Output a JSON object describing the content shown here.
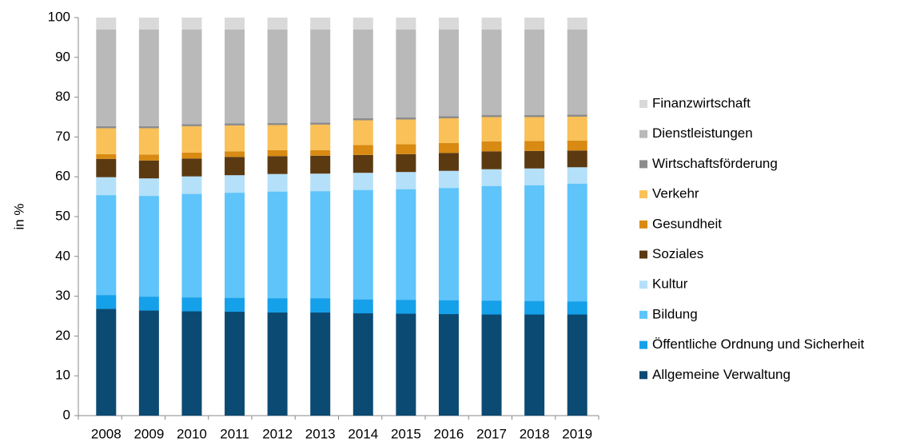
{
  "chart_data": {
    "type": "stacked_bar",
    "y_label": "in %",
    "categories": [
      "2008",
      "2009",
      "2010",
      "2011",
      "2012",
      "2013",
      "2014",
      "2015",
      "2016",
      "2017",
      "2018",
      "2019"
    ],
    "ylim": [
      0,
      100
    ],
    "yticks": [
      0,
      10,
      20,
      30,
      40,
      50,
      60,
      70,
      80,
      90,
      100
    ],
    "grid": false,
    "series": [
      {
        "name": "Allgemeine Verwaltung",
        "color": "#0b4a72",
        "values": [
          26.8,
          26.4,
          26.2,
          26.1,
          25.9,
          25.9,
          25.7,
          25.6,
          25.5,
          25.4,
          25.4,
          25.4
        ]
      },
      {
        "name": "Öffentliche Ordnung und Sicherheit",
        "color": "#15a0ea",
        "values": [
          3.5,
          3.5,
          3.5,
          3.5,
          3.6,
          3.6,
          3.5,
          3.5,
          3.5,
          3.5,
          3.4,
          3.3
        ]
      },
      {
        "name": "Bildung",
        "color": "#5ec4fa",
        "values": [
          25.1,
          25.3,
          26.0,
          26.4,
          26.8,
          26.9,
          27.5,
          27.8,
          28.2,
          28.8,
          29.1,
          29.6
        ]
      },
      {
        "name": "Kultur",
        "color": "#b4e0fa",
        "values": [
          4.5,
          4.4,
          4.4,
          4.4,
          4.4,
          4.4,
          4.3,
          4.3,
          4.3,
          4.2,
          4.2,
          4.1
        ]
      },
      {
        "name": "Soziales",
        "color": "#5b3a12",
        "values": [
          4.6,
          4.5,
          4.5,
          4.6,
          4.5,
          4.5,
          4.5,
          4.5,
          4.5,
          4.5,
          4.4,
          4.2
        ]
      },
      {
        "name": "Gesundheit",
        "color": "#d88a12",
        "values": [
          1.2,
          1.5,
          1.5,
          1.4,
          1.5,
          1.4,
          2.5,
          2.5,
          2.5,
          2.5,
          2.5,
          2.5
        ]
      },
      {
        "name": "Verkehr",
        "color": "#f9c158",
        "values": [
          6.5,
          6.6,
          6.6,
          6.5,
          6.3,
          6.4,
          6.2,
          6.2,
          6.2,
          6.1,
          6.0,
          6.0
        ]
      },
      {
        "name": "Wirtschaftsförderung",
        "color": "#8c8c8c",
        "values": [
          0.5,
          0.5,
          0.5,
          0.5,
          0.5,
          0.5,
          0.5,
          0.5,
          0.5,
          0.5,
          0.5,
          0.5
        ]
      },
      {
        "name": "Dienstleistungen",
        "color": "#b9b9b9",
        "values": [
          24.3,
          24.3,
          23.8,
          23.6,
          23.5,
          23.4,
          22.3,
          22.1,
          21.8,
          21.5,
          21.5,
          21.4
        ]
      },
      {
        "name": "Finanzwirtschaft",
        "color": "#d9d9d9",
        "values": [
          3.0,
          3.0,
          3.0,
          3.0,
          3.0,
          3.0,
          3.0,
          3.0,
          3.0,
          3.0,
          3.0,
          3.0
        ]
      }
    ]
  }
}
